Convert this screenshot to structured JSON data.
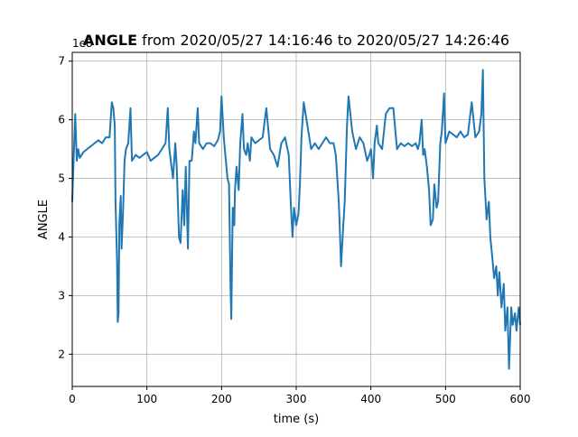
{
  "chart_data": {
    "type": "line",
    "title_bold": "ANGLE",
    "title_rest": " from 2020/05/27 14:16:46 to 2020/05/27 14:26:46",
    "xlabel": "time (s)",
    "ylabel": "ANGLE",
    "y_offset_label": "1e8",
    "xlim": [
      0,
      600
    ],
    "ylim": [
      1.45,
      7.15
    ],
    "xticks": [
      0,
      100,
      200,
      300,
      400,
      500,
      600
    ],
    "yticks": [
      2,
      3,
      4,
      5,
      6,
      7
    ],
    "grid": true,
    "line_color": "#1f77b4",
    "series": [
      {
        "x": [
          0,
          2,
          4,
          6,
          8,
          10,
          15,
          20,
          25,
          30,
          35,
          40,
          45,
          50,
          53,
          55,
          57,
          58,
          60,
          61,
          62,
          63,
          65,
          66,
          68,
          70,
          72,
          75,
          78,
          80,
          85,
          90,
          95,
          100,
          105,
          110,
          115,
          120,
          125,
          128,
          130,
          133,
          135,
          138,
          140,
          143,
          145,
          148,
          150,
          152,
          155,
          157,
          160,
          163,
          165,
          168,
          170,
          175,
          180,
          185,
          190,
          195,
          198,
          200,
          203,
          205,
          208,
          210,
          212,
          213,
          215,
          217,
          218,
          220,
          223,
          225,
          228,
          230,
          233,
          235,
          238,
          240,
          245,
          250,
          255,
          260,
          265,
          270,
          275,
          280,
          285,
          290,
          293,
          295,
          297,
          300,
          303,
          305,
          307,
          310,
          315,
          320,
          325,
          330,
          335,
          340,
          345,
          350,
          353,
          355,
          357,
          358,
          360,
          363,
          365,
          368,
          370,
          375,
          380,
          385,
          390,
          395,
          398,
          400,
          403,
          405,
          408,
          410,
          415,
          420,
          425,
          430,
          435,
          440,
          445,
          450,
          455,
          460,
          463,
          465,
          468,
          470,
          472,
          475,
          478,
          480,
          483,
          485,
          488,
          490,
          493,
          495,
          498,
          500,
          505,
          510,
          515,
          520,
          525,
          530,
          535,
          540,
          545,
          548,
          550,
          552,
          555,
          558,
          560,
          563,
          565,
          568,
          570,
          572,
          575,
          578,
          580,
          583,
          585,
          588,
          590,
          593,
          595,
          598,
          600
        ],
        "y": [
          4.6,
          5.4,
          6.1,
          5.3,
          5.5,
          5.35,
          5.45,
          5.5,
          5.55,
          5.6,
          5.65,
          5.6,
          5.7,
          5.7,
          6.3,
          6.2,
          5.9,
          4.6,
          3.6,
          2.55,
          2.7,
          4.2,
          4.7,
          3.8,
          4.4,
          5.3,
          5.5,
          5.6,
          6.2,
          5.3,
          5.4,
          5.35,
          5.4,
          5.45,
          5.3,
          5.35,
          5.4,
          5.5,
          5.6,
          6.2,
          5.5,
          5.2,
          5.0,
          5.6,
          5.2,
          4.0,
          3.9,
          4.8,
          4.2,
          5.2,
          3.8,
          5.3,
          5.3,
          5.8,
          5.6,
          6.2,
          5.6,
          5.5,
          5.6,
          5.6,
          5.55,
          5.65,
          5.8,
          6.4,
          5.7,
          5.4,
          5.0,
          4.9,
          3.1,
          2.6,
          4.5,
          4.2,
          4.8,
          5.2,
          4.8,
          5.6,
          6.1,
          5.5,
          5.4,
          5.6,
          5.3,
          5.7,
          5.6,
          5.65,
          5.7,
          6.2,
          5.5,
          5.4,
          5.2,
          5.6,
          5.7,
          5.4,
          4.5,
          4.0,
          4.5,
          4.2,
          4.4,
          4.9,
          5.7,
          6.3,
          5.9,
          5.5,
          5.6,
          5.5,
          5.6,
          5.7,
          5.6,
          5.6,
          5.4,
          5.0,
          4.6,
          4.3,
          3.5,
          4.2,
          4.6,
          5.9,
          6.4,
          5.8,
          5.5,
          5.7,
          5.6,
          5.3,
          5.4,
          5.5,
          5.0,
          5.6,
          5.9,
          5.6,
          5.5,
          6.1,
          6.2,
          6.2,
          5.5,
          5.6,
          5.55,
          5.6,
          5.55,
          5.6,
          5.5,
          5.6,
          6.0,
          5.4,
          5.5,
          5.2,
          4.8,
          4.2,
          4.3,
          4.9,
          4.5,
          4.6,
          5.6,
          5.8,
          6.45,
          5.6,
          5.8,
          5.75,
          5.7,
          5.8,
          5.7,
          5.75,
          6.3,
          5.7,
          5.8,
          6.1,
          6.85,
          5.0,
          4.3,
          4.6,
          4.0,
          3.6,
          3.3,
          3.5,
          3.0,
          3.4,
          2.8,
          3.2,
          2.4,
          2.8,
          1.75,
          2.8,
          2.5,
          2.7,
          2.4,
          2.8,
          2.5
        ]
      }
    ]
  }
}
